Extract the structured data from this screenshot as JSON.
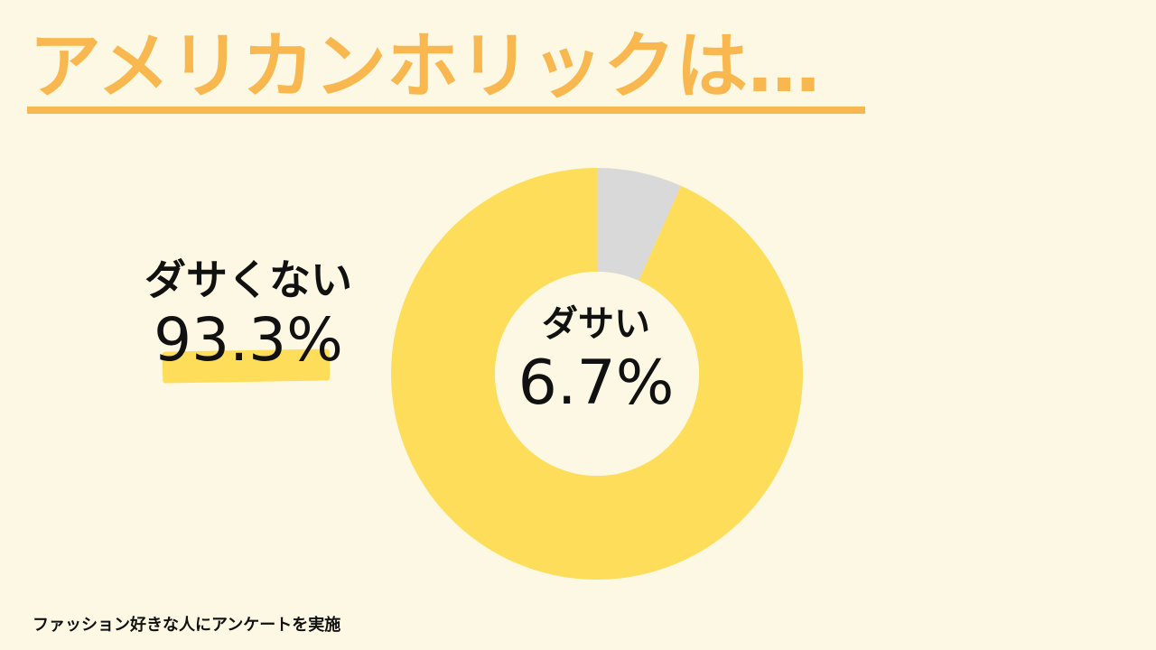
{
  "page": {
    "title": "アメリカンホリックは…",
    "footnote": "ファッション好きな人にアンケートを実施"
  },
  "colors": {
    "background": "#fdf8e4",
    "title": "#f8b84f",
    "not_lame": "#fedd5b",
    "lame": "#d9d9d9",
    "text": "#111111"
  },
  "chart_data": {
    "type": "pie",
    "subtype": "donut",
    "title": "アメリカンホリックは…",
    "series": [
      {
        "name": "ダサい",
        "value": 6.7,
        "label": "6.7%",
        "color": "#d9d9d9"
      },
      {
        "name": "ダサくない",
        "value": 93.3,
        "label": "93.3%",
        "color": "#fedd5b"
      }
    ],
    "legend": "none"
  }
}
